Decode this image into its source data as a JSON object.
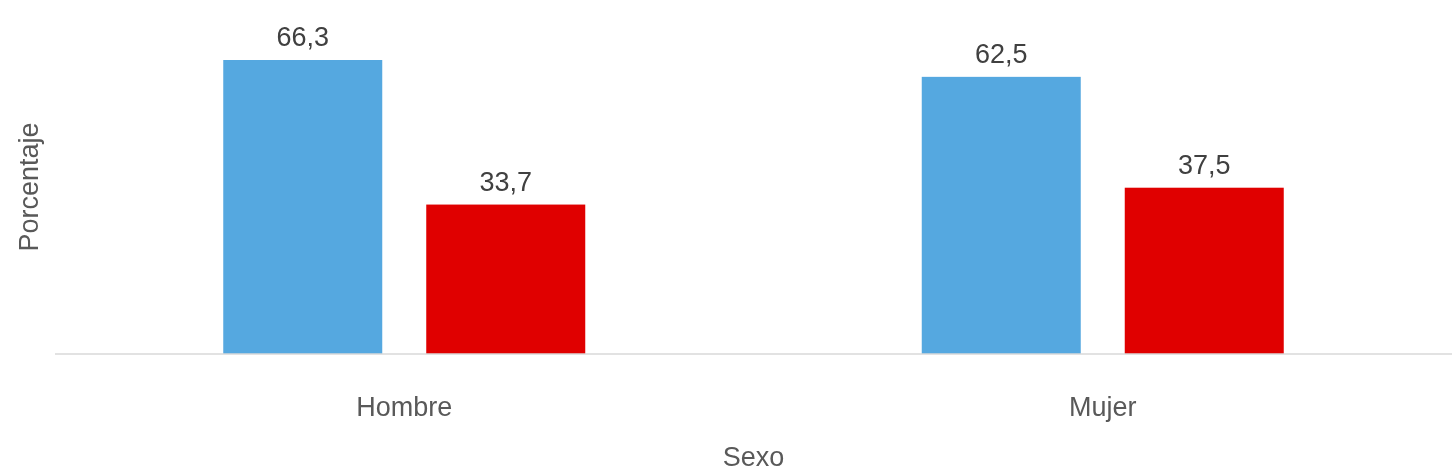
{
  "chart_data": {
    "type": "bar",
    "xlabel": "Sexo",
    "ylabel": "Porcentaje",
    "categories": [
      "Hombre",
      "Mujer"
    ],
    "series": [
      {
        "color": "#55a8e0",
        "values": [
          66.3,
          62.5
        ],
        "value_labels": [
          "66,3",
          "62,5"
        ]
      },
      {
        "color": "#e00000",
        "values": [
          33.7,
          37.5
        ],
        "value_labels": [
          "33,7",
          "37,5"
        ]
      }
    ]
  }
}
